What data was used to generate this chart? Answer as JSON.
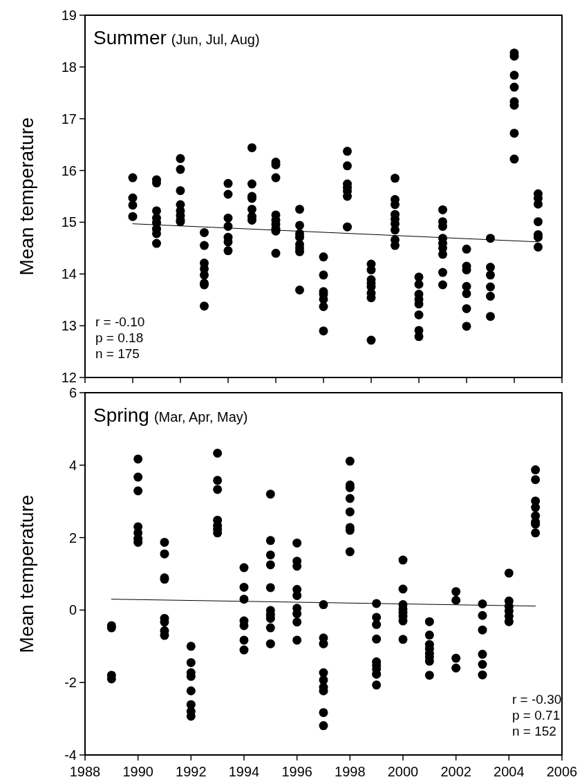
{
  "chart_data": [
    {
      "type": "scatter",
      "title": "Summer",
      "subtitle": "(Jun, Jul, Aug)",
      "ylabel": "Mean temperature",
      "xlim": [
        1988,
        2006
      ],
      "xticks": [
        1988,
        1989.8,
        1991.6,
        1993.4,
        1995.2,
        1997,
        1998.8,
        2000.6,
        2002.4,
        2004.2,
        2006
      ],
      "ylim": [
        12,
        19
      ],
      "yticks": [
        12,
        13,
        14,
        15,
        16,
        17,
        18,
        19
      ],
      "tick_labels": "y",
      "grid": false,
      "annotations": [
        "r = -0.10",
        "p = 0.18",
        "n = 175"
      ],
      "series": [
        {
          "type": "scatter",
          "marker": "circle",
          "color": "#000000",
          "x": [
            1989.8,
            1989.8,
            1989.8,
            1989.8,
            1990.7,
            1990.7,
            1990.7,
            1990.7,
            1990.7,
            1990.7,
            1990.7,
            1990.7,
            1991.6,
            1991.6,
            1991.6,
            1991.6,
            1991.6,
            1991.6,
            1991.6,
            1991.6,
            1992.5,
            1992.5,
            1992.5,
            1992.5,
            1992.5,
            1992.5,
            1992.5,
            1992.5,
            1993.4,
            1993.4,
            1993.4,
            1993.4,
            1993.4,
            1993.4,
            1993.4,
            1994.3,
            1994.3,
            1994.3,
            1994.3,
            1994.3,
            1994.3,
            1994.3,
            1995.2,
            1995.2,
            1995.2,
            1995.2,
            1995.2,
            1995.2,
            1995.2,
            1995.2,
            1995.2,
            1996.1,
            1996.1,
            1996.1,
            1996.1,
            1996.1,
            1996.1,
            1996.1,
            1996.1,
            1997,
            1997,
            1997,
            1997,
            1997,
            1997,
            1997,
            1997.9,
            1997.9,
            1997.9,
            1997.9,
            1997.9,
            1997.9,
            1997.9,
            1998.8,
            1998.8,
            1998.8,
            1998.8,
            1998.8,
            1998.8,
            1998.8,
            1998.8,
            1999.7,
            1999.7,
            1999.7,
            1999.7,
            1999.7,
            1999.7,
            1999.7,
            1999.7,
            1999.7,
            2000.6,
            2000.6,
            2000.6,
            2000.6,
            2000.6,
            2000.6,
            2000.6,
            2000.6,
            2001.5,
            2001.5,
            2001.5,
            2001.5,
            2001.5,
            2001.5,
            2001.5,
            2001.5,
            2001.5,
            2002.4,
            2002.4,
            2002.4,
            2002.4,
            2002.4,
            2002.4,
            2002.4,
            2003.3,
            2003.3,
            2003.3,
            2003.3,
            2003.3,
            2003.3,
            2004.2,
            2004.2,
            2004.2,
            2004.2,
            2004.2,
            2004.2,
            2004.2,
            2004.2,
            2005.1,
            2005.1,
            2005.1,
            2005.1,
            2005.1,
            2005.1,
            2005.1
          ],
          "values": [
            15.86,
            15.47,
            15.33,
            15.11,
            15.82,
            15.76,
            15.22,
            15.08,
            14.99,
            14.87,
            14.78,
            14.59,
            16.23,
            16.02,
            15.61,
            15.34,
            15.22,
            15.13,
            15.04,
            15.01,
            14.8,
            14.55,
            14.21,
            14.1,
            13.98,
            13.82,
            13.79,
            13.38,
            15.75,
            15.54,
            15.08,
            14.92,
            14.71,
            14.62,
            14.45,
            16.44,
            15.74,
            15.5,
            15.46,
            15.25,
            15.11,
            15.04,
            16.16,
            16.11,
            15.86,
            15.14,
            15.04,
            14.96,
            14.87,
            14.83,
            14.4,
            15.25,
            14.94,
            14.78,
            14.71,
            14.57,
            14.5,
            14.43,
            13.69,
            14.33,
            13.98,
            13.66,
            13.61,
            13.51,
            13.37,
            12.9,
            16.37,
            16.09,
            15.74,
            15.67,
            15.6,
            15.5,
            14.91,
            14.19,
            14.08,
            13.89,
            13.82,
            13.75,
            13.63,
            13.54,
            12.72,
            15.85,
            15.44,
            15.34,
            15.15,
            15.06,
            14.97,
            14.85,
            14.66,
            14.55,
            13.94,
            13.8,
            13.61,
            13.51,
            13.42,
            13.21,
            12.91,
            12.79,
            15.24,
            15.01,
            14.92,
            14.69,
            14.59,
            14.5,
            14.38,
            14.03,
            13.79,
            14.48,
            14.15,
            14.08,
            13.76,
            13.62,
            13.33,
            12.99,
            14.69,
            14.13,
            13.98,
            13.75,
            13.57,
            13.18,
            18.27,
            18.21,
            17.84,
            17.61,
            17.33,
            17.26,
            16.72,
            16.22,
            15.55,
            15.46,
            15.35,
            15.01,
            14.76,
            14.71,
            14.52
          ]
        },
        {
          "type": "line",
          "color": "#000000",
          "x": [
            1989.8,
            2005.1
          ],
          "values": [
            14.97,
            14.62
          ]
        }
      ]
    },
    {
      "type": "scatter",
      "title": "Spring",
      "subtitle": "(Mar, Apr, May)",
      "ylabel": "Mean temperature",
      "xlim": [
        1988,
        2006
      ],
      "xticks": [
        1988,
        1990,
        1992,
        1994,
        1996,
        1998,
        2000,
        2002,
        2004,
        2006
      ],
      "ylim": [
        -4,
        6
      ],
      "yticks": [
        -4,
        -2,
        0,
        2,
        4,
        6
      ],
      "grid": false,
      "annotations": [
        "r = -0.30",
        "p = 0.71",
        "n = 152"
      ],
      "series": [
        {
          "type": "scatter",
          "marker": "circle",
          "color": "#000000",
          "x": [
            1989,
            1989,
            1989,
            1989,
            1990,
            1990,
            1990,
            1990,
            1990,
            1990,
            1990,
            1991,
            1991,
            1991,
            1991,
            1991,
            1991,
            1991,
            1991,
            1992,
            1992,
            1992,
            1992,
            1992,
            1992,
            1992,
            1992,
            1993,
            1993,
            1993,
            1993,
            1993,
            1993,
            1993,
            1994,
            1994,
            1994,
            1994,
            1994,
            1994,
            1994,
            1995,
            1995,
            1995,
            1995,
            1995,
            1995,
            1995,
            1995,
            1995,
            1995,
            1996,
            1996,
            1996,
            1996,
            1996,
            1996,
            1996,
            1996,
            1996,
            1997,
            1997,
            1997,
            1997,
            1997,
            1997,
            1997,
            1997,
            1997,
            1998,
            1998,
            1998,
            1998,
            1998,
            1998,
            1998,
            1998,
            1999,
            1999,
            1999,
            1999,
            1999,
            1999,
            1999,
            1999,
            1999,
            2000,
            2000,
            2000,
            2000,
            2000,
            2000,
            2000,
            2000,
            2001,
            2001,
            2001,
            2001,
            2001,
            2001,
            2001,
            2001,
            2002,
            2002,
            2002,
            2002,
            2003,
            2003,
            2003,
            2003,
            2003,
            2003,
            2004,
            2004,
            2004,
            2004,
            2004,
            2004,
            2005,
            2005,
            2005,
            2005,
            2005,
            2005,
            2005,
            2005
          ],
          "values": [
            -0.43,
            -0.49,
            -1.8,
            -1.9,
            4.17,
            3.67,
            3.29,
            2.3,
            2.13,
            1.97,
            1.87,
            1.87,
            1.55,
            0.89,
            0.85,
            -0.23,
            -0.33,
            -0.57,
            -0.7,
            -1.0,
            -1.45,
            -1.73,
            -1.83,
            -2.23,
            -2.61,
            -2.8,
            -2.93,
            4.33,
            3.58,
            3.33,
            2.48,
            2.33,
            2.23,
            2.13,
            1.17,
            0.63,
            0.3,
            -0.3,
            -0.43,
            -0.83,
            -1.1,
            3.2,
            1.92,
            1.52,
            1.25,
            0.62,
            -0.01,
            -0.13,
            -0.23,
            -0.49,
            -0.93,
            1.85,
            1.35,
            1.21,
            0.57,
            0.4,
            0.05,
            -0.1,
            -0.33,
            -0.83,
            0.15,
            -0.77,
            -0.93,
            -1.73,
            -1.93,
            -2.13,
            -2.23,
            -2.83,
            -3.19,
            4.11,
            3.45,
            3.38,
            3.08,
            2.71,
            2.28,
            2.2,
            1.61,
            0.18,
            -0.2,
            -0.4,
            -0.8,
            -1.43,
            -1.53,
            -1.63,
            -1.77,
            -2.07,
            1.38,
            0.58,
            0.15,
            0.03,
            -0.07,
            -0.17,
            -0.3,
            -0.81,
            -0.32,
            -0.69,
            -0.95,
            -1.07,
            -1.2,
            -1.3,
            -1.41,
            -1.8,
            0.51,
            0.27,
            -1.33,
            -1.6,
            0.17,
            -0.15,
            -0.55,
            -1.22,
            -1.5,
            -1.79,
            1.02,
            0.25,
            0.1,
            -0.03,
            -0.17,
            -0.32,
            3.87,
            3.6,
            3.01,
            2.83,
            2.6,
            2.43,
            2.37,
            2.13
          ]
        },
        {
          "type": "line",
          "color": "#000000",
          "x": [
            1989,
            2005
          ],
          "values": [
            0.3,
            0.11
          ]
        }
      ]
    }
  ]
}
